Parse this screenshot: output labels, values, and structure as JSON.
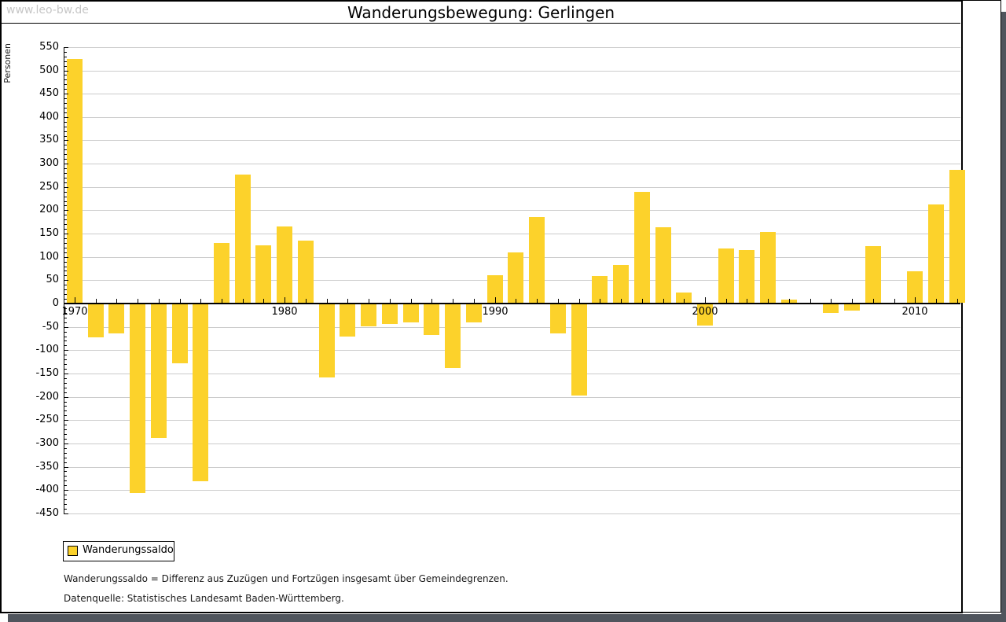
{
  "watermark": "www.leo-bw.de",
  "title": "Wanderungsbewegung: Gerlingen",
  "y_axis_label": "Personen",
  "legend": {
    "label": "Wanderungssaldo"
  },
  "footnotes": [
    "Wanderungssaldo = Differenz aus Zuzügen und Fortzügen insgesamt über Gemeindegrenzen.",
    "Datenquelle: Statistisches Landesamt Baden-Württemberg."
  ],
  "colors": {
    "bar": "#FCD22B",
    "grid": "#CCCCCC",
    "axis": "#000000",
    "watermark": "#C6C6C6",
    "shadow": "#50555D"
  },
  "chart_data": {
    "type": "bar",
    "title": "Wanderungsbewegung: Gerlingen",
    "xlabel": "",
    "ylabel": "Personen",
    "series_name": "Wanderungssaldo",
    "years": [
      1970,
      1971,
      1972,
      1973,
      1974,
      1975,
      1976,
      1977,
      1978,
      1979,
      1980,
      1981,
      1982,
      1983,
      1984,
      1985,
      1986,
      1987,
      1988,
      1989,
      1990,
      1991,
      1992,
      1993,
      1994,
      1995,
      1996,
      1997,
      1998,
      1999,
      2000,
      2001,
      2002,
      2003,
      2004,
      2005,
      2006,
      2007,
      2008,
      2009,
      2010,
      2011,
      2012
    ],
    "values": [
      522,
      -70,
      -63,
      -404,
      -287,
      -126,
      -379,
      128,
      275,
      123,
      163,
      133,
      -156,
      -69,
      -48,
      -42,
      -39,
      -65,
      -136,
      -39,
      59,
      108,
      184,
      -62,
      -196,
      58,
      81,
      237,
      162,
      22,
      -45,
      116,
      113,
      152,
      7,
      0,
      -19,
      -14,
      122,
      0,
      67,
      211,
      285
    ],
    "ylim": [
      -450,
      550
    ],
    "ytick_step": 50,
    "ytick_minor_step": 10,
    "xtick_labels": [
      1970,
      1980,
      1990,
      2000,
      2010
    ],
    "grid": "horizontal",
    "legend_position": "bottom-left"
  }
}
